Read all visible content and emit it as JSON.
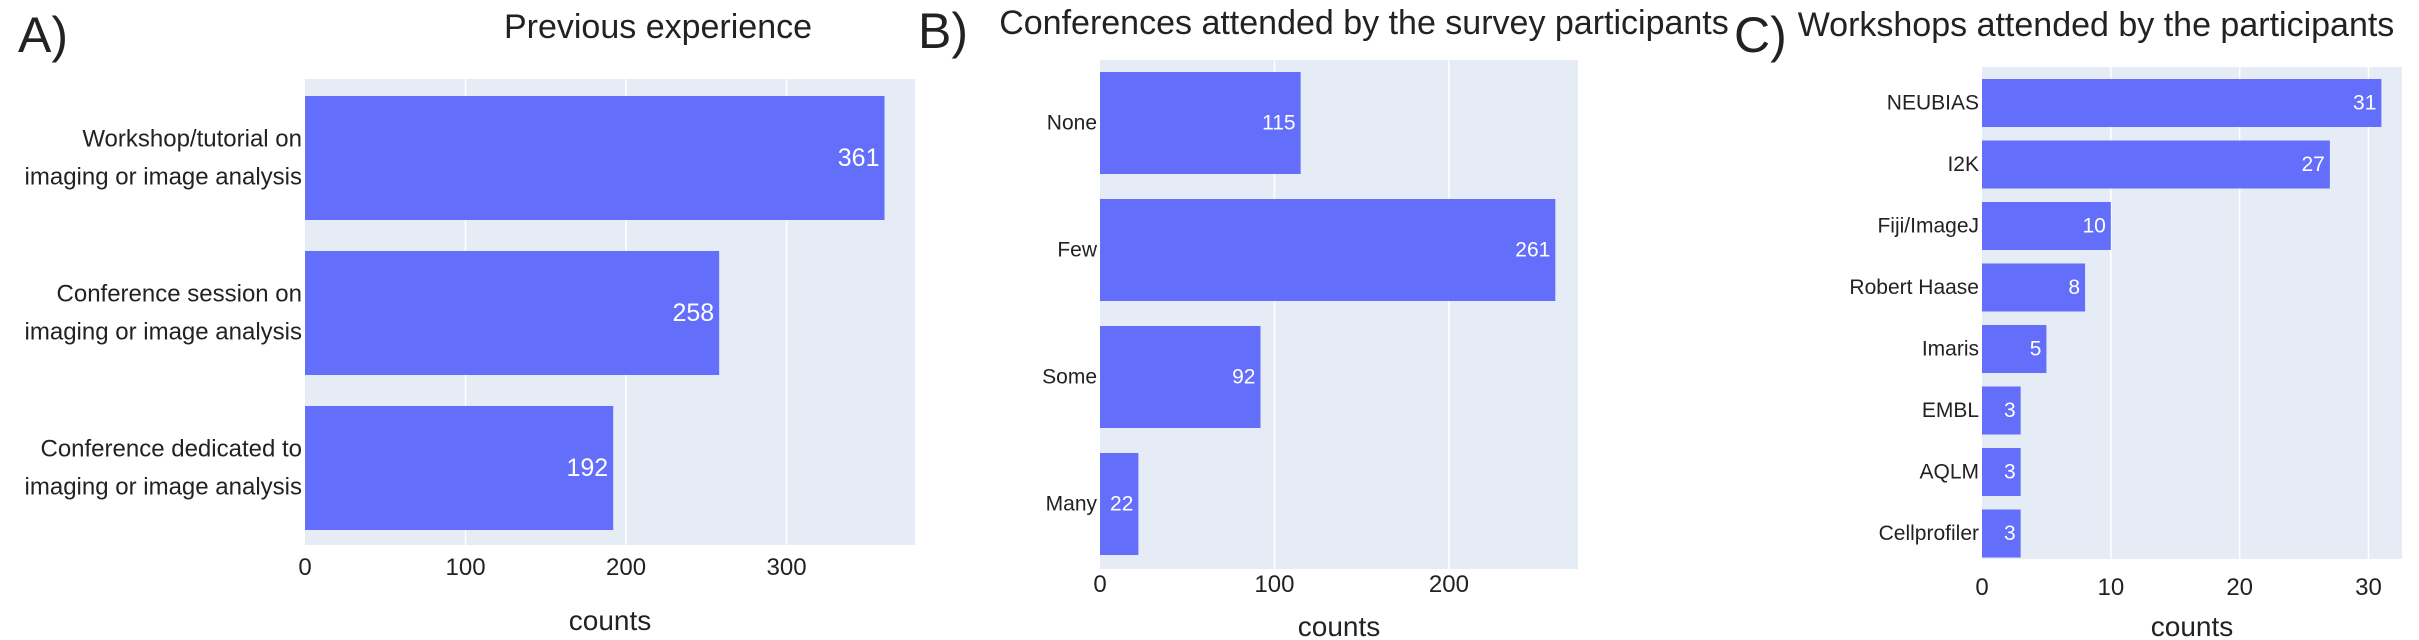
{
  "chart_data": [
    {
      "type": "bar",
      "orientation": "horizontal",
      "panel_label": "A)",
      "title": "Previous experience",
      "xlabel": "counts",
      "categories": [
        [
          "Workshop/tutorial on",
          "imaging or image analysis"
        ],
        [
          "Conference session on",
          "imaging or image analysis"
        ],
        [
          "Conference dedicated to",
          "imaging or image analysis"
        ]
      ],
      "values": [
        361,
        258,
        192
      ],
      "xlim": [
        0,
        380
      ],
      "xticks": [
        0,
        100,
        200,
        300
      ],
      "grid": true,
      "bar_color": "#636efa",
      "background_color": "#e5ecf6"
    },
    {
      "type": "bar",
      "orientation": "horizontal",
      "panel_label": "B)",
      "title": "Conferences attended by the survey participants",
      "xlabel": "counts",
      "categories": [
        [
          "None"
        ],
        [
          "Few"
        ],
        [
          "Some"
        ],
        [
          "Many"
        ]
      ],
      "values": [
        115,
        261,
        92,
        22
      ],
      "xlim": [
        0,
        274
      ],
      "xticks": [
        0,
        100,
        200
      ],
      "grid": true,
      "bar_color": "#636efa",
      "background_color": "#e5ecf6"
    },
    {
      "type": "bar",
      "orientation": "horizontal",
      "panel_label": "C)",
      "title": "Workshops attended by the participants",
      "xlabel": "counts",
      "categories": [
        [
          "NEUBIAS"
        ],
        [
          "I2K"
        ],
        [
          "Fiji/ImageJ"
        ],
        [
          "Robert Haase"
        ],
        [
          "Imaris"
        ],
        [
          "EMBL"
        ],
        [
          "AQLM"
        ],
        [
          "Cellprofiler"
        ]
      ],
      "values": [
        31,
        27,
        10,
        8,
        5,
        3,
        3,
        3
      ],
      "xlim": [
        0,
        32.6
      ],
      "xticks": [
        0,
        10,
        20,
        30
      ],
      "grid": true,
      "bar_color": "#636efa",
      "background_color": "#e5ecf6"
    }
  ]
}
